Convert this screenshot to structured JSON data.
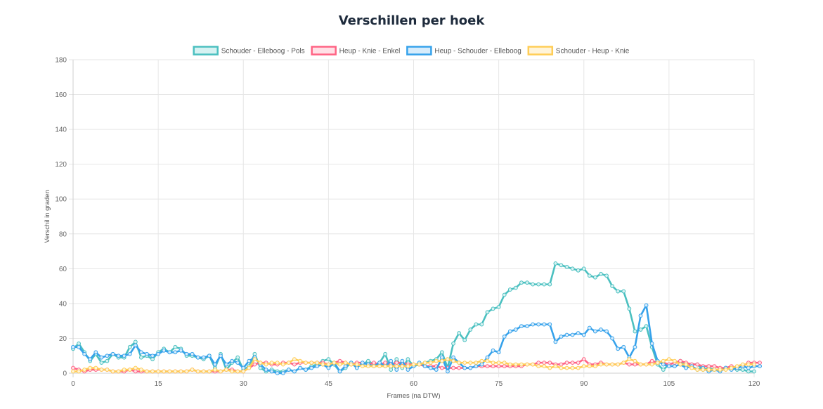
{
  "chart_data": {
    "type": "line",
    "title": "Verschillen per hoek",
    "xlabel": "Frames (na DTW)",
    "ylabel": "Verschil in graden",
    "xlim": [
      0,
      120
    ],
    "ylim": [
      0,
      180
    ],
    "x_ticks": [
      0,
      15,
      30,
      45,
      60,
      75,
      90,
      105,
      120
    ],
    "y_ticks": [
      0,
      20,
      40,
      60,
      80,
      100,
      120,
      140,
      160,
      180
    ],
    "grid": true,
    "legend_position": "top",
    "series": [
      {
        "name": "Schouder - Elleboog - Pols",
        "color": "#4bc0c0",
        "fill": "#d6f2f2",
        "values": [
          14,
          17,
          12,
          7,
          11,
          6,
          7,
          11,
          9,
          9,
          15,
          18,
          9,
          10,
          8,
          12,
          14,
          12,
          15,
          14,
          10,
          10,
          9,
          8,
          10,
          3,
          11,
          2,
          6,
          9,
          2,
          4,
          11,
          3,
          1,
          2,
          1,
          1,
          2,
          1,
          3,
          2,
          4,
          5,
          7,
          8,
          5,
          1,
          3,
          6,
          4,
          5,
          7,
          5,
          6,
          11,
          2,
          8,
          3,
          8,
          4,
          5,
          6,
          7,
          8,
          12,
          3,
          17,
          23,
          19,
          25,
          28,
          28,
          35,
          37,
          38,
          45,
          48,
          49,
          52,
          52,
          51,
          51,
          51,
          51,
          63,
          62,
          61,
          60,
          59,
          60,
          56,
          55,
          57,
          56,
          50,
          47,
          47,
          37,
          24,
          25,
          27,
          15,
          5,
          2,
          5,
          6,
          7,
          4,
          5,
          5,
          2,
          3,
          2,
          2,
          3,
          3,
          2,
          2,
          1,
          1
        ]
      },
      {
        "name": "Heup - Knie - Enkel",
        "color": "#ff6384",
        "fill": "#ffe0e6",
        "values": [
          3,
          2,
          1,
          2,
          2,
          2,
          2,
          1,
          1,
          1,
          2,
          1,
          1,
          1,
          1,
          1,
          1,
          1,
          1,
          1,
          1,
          2,
          1,
          1,
          1,
          1,
          1,
          2,
          2,
          1,
          1,
          3,
          5,
          6,
          6,
          5,
          5,
          6,
          6,
          5,
          6,
          6,
          6,
          6,
          6,
          5,
          6,
          7,
          6,
          5,
          6,
          6,
          5,
          6,
          5,
          6,
          5,
          6,
          6,
          5,
          5,
          5,
          4,
          4,
          4,
          3,
          3,
          3,
          3,
          3,
          3,
          4,
          4,
          4,
          4,
          4,
          4,
          4,
          4,
          4,
          5,
          5,
          6,
          6,
          6,
          5,
          5,
          6,
          6,
          6,
          8,
          5,
          5,
          6,
          5,
          5,
          5,
          6,
          5,
          5,
          5,
          5,
          7,
          6,
          6,
          5,
          6,
          7,
          6,
          5,
          5,
          4,
          4,
          4,
          3,
          3,
          4,
          3,
          4,
          6,
          6,
          6
        ]
      },
      {
        "name": "Heup - Schouder - Elleboog",
        "color": "#36a2eb",
        "fill": "#d7ecfb",
        "values": [
          15,
          15,
          11,
          8,
          12,
          9,
          10,
          11,
          10,
          10,
          11,
          16,
          12,
          11,
          10,
          11,
          13,
          12,
          12,
          13,
          11,
          11,
          9,
          9,
          10,
          5,
          10,
          5,
          7,
          6,
          3,
          7,
          9,
          5,
          2,
          1,
          0,
          0,
          2,
          1,
          3,
          2,
          3,
          4,
          5,
          3,
          6,
          1,
          4,
          6,
          3,
          6,
          5,
          4,
          6,
          4,
          7,
          2,
          7,
          2,
          4,
          6,
          4,
          3,
          2,
          9,
          1,
          9,
          6,
          3,
          3,
          4,
          5,
          9,
          13,
          12,
          21,
          24,
          25,
          27,
          27,
          28,
          28,
          28,
          28,
          18,
          21,
          22,
          22,
          23,
          22,
          26,
          24,
          25,
          24,
          20,
          14,
          15,
          9,
          15,
          33,
          39,
          17,
          7,
          5,
          4,
          4,
          5,
          3,
          4,
          2,
          3,
          1,
          2,
          1,
          3,
          2,
          3,
          4,
          3,
          4,
          4
        ]
      },
      {
        "name": "Schouder - Heup - Knie",
        "color": "#ffcd56",
        "fill": "#fff4d9",
        "values": [
          1,
          1,
          2,
          3,
          3,
          2,
          2,
          1,
          1,
          2,
          2,
          3,
          2,
          1,
          1,
          1,
          1,
          1,
          1,
          1,
          1,
          2,
          1,
          1,
          1,
          2,
          1,
          2,
          1,
          1,
          1,
          3,
          8,
          6,
          5,
          6,
          6,
          5,
          6,
          8,
          7,
          6,
          6,
          6,
          5,
          5,
          6,
          5,
          6,
          5,
          5,
          4,
          4,
          4,
          4,
          4,
          4,
          4,
          4,
          4,
          5,
          5,
          6,
          6,
          7,
          7,
          8,
          7,
          6,
          6,
          6,
          6,
          7,
          7,
          6,
          6,
          6,
          5,
          5,
          5,
          5,
          5,
          4,
          4,
          3,
          4,
          3,
          3,
          3,
          3,
          4,
          4,
          4,
          5,
          5,
          5,
          5,
          6,
          8,
          7,
          5,
          5,
          5,
          6,
          7,
          8,
          7,
          5,
          5,
          3,
          2,
          2,
          2,
          2,
          2,
          2,
          3,
          4,
          5,
          5,
          5
        ]
      }
    ]
  }
}
